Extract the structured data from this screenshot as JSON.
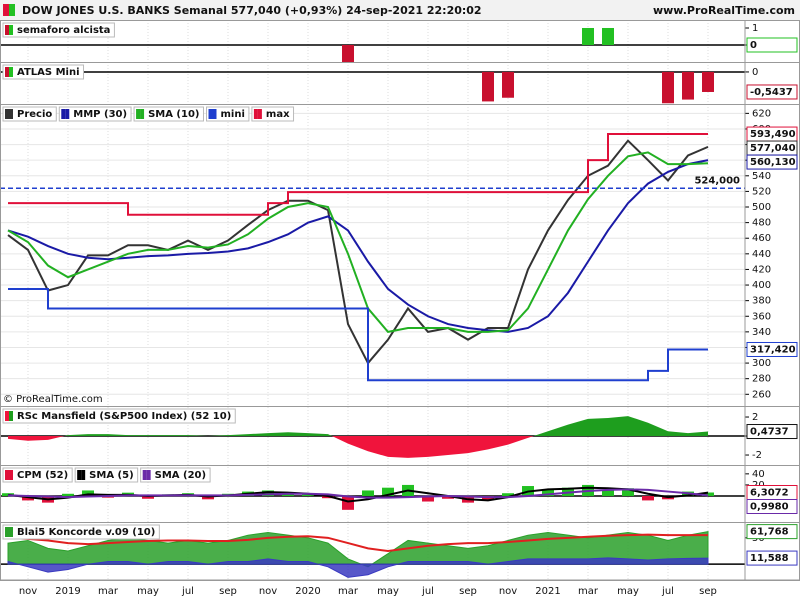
{
  "header": {
    "title": "DOW JONES U.S. BANKS Semanal 577,040 (+0,93%) 24-sep-2021 22:20:02",
    "site": "www.ProRealTime.com"
  },
  "chart_data": [
    {
      "type": "bar",
      "title": "semaforo alcista",
      "ylim": [
        -1,
        1.47
      ],
      "yticks": [
        1,
        0
      ],
      "up_color": "#22c022",
      "down_color": "#c8102e",
      "last_box": true,
      "series": [
        {
          "values": [
            0,
            0,
            0,
            0,
            0,
            0,
            0,
            0,
            0,
            0,
            0,
            0,
            0,
            0,
            0,
            0,
            0,
            -1,
            0,
            0,
            0,
            0,
            0,
            0,
            0,
            0,
            0,
            0,
            0,
            1,
            1,
            0,
            0,
            0,
            0,
            0
          ]
        }
      ]
    },
    {
      "type": "bar",
      "title": "ATLAS Mini",
      "ylim": [
        -0.87,
        0.27
      ],
      "yticks": [
        0
      ],
      "up_color": "#22c022",
      "down_color": "#c8102e",
      "series": [
        {
          "values": [
            0,
            0,
            0,
            0,
            0,
            0,
            0,
            0,
            0,
            0,
            0,
            0,
            0,
            0,
            0,
            0,
            0,
            0,
            0,
            0,
            0,
            0,
            0,
            0,
            -0.8,
            -0.7,
            0,
            0,
            0,
            0,
            0,
            0,
            0,
            -0.85,
            -0.75,
            -0.5437
          ],
          "last_label": "-0,5437",
          "color": "#c8102e"
        }
      ]
    },
    {
      "type": "line",
      "legend": true,
      "grid": true,
      "watermark": "© ProRealTime.com",
      "ylim": [
        245,
        632
      ],
      "yticks": [
        620,
        600,
        580,
        560,
        540,
        520,
        500,
        480,
        460,
        440,
        420,
        400,
        380,
        360,
        340,
        320,
        300,
        280,
        260
      ],
      "hline": {
        "value": 524,
        "label": "524,000",
        "color": "#1f3fcf"
      },
      "series": [
        {
          "name": "Precio",
          "color": "#333333",
          "values": [
            464,
            445,
            393,
            400,
            438,
            438,
            451,
            451,
            445,
            457,
            445,
            457,
            477,
            496,
            508,
            508,
            496,
            350,
            300,
            330,
            370,
            340,
            345,
            330,
            345,
            345,
            420,
            470,
            509,
            540,
            553,
            585,
            560,
            534,
            566,
            577.04
          ],
          "last_label": "577,040"
        },
        {
          "name": "MMP (30)",
          "color": "#1a1aa6",
          "values": [
            470,
            462,
            450,
            440,
            435,
            433,
            435,
            437,
            438,
            440,
            441,
            443,
            447,
            455,
            465,
            480,
            488,
            470,
            430,
            395,
            375,
            360,
            350,
            345,
            342,
            340,
            345,
            360,
            390,
            430,
            470,
            505,
            530,
            545,
            555,
            560.13
          ],
          "last_label": "560,130"
        },
        {
          "name": "SMA (10)",
          "color": "#22b022",
          "values": [
            470,
            455,
            425,
            410,
            420,
            430,
            440,
            445,
            445,
            450,
            448,
            452,
            465,
            485,
            500,
            505,
            500,
            440,
            370,
            340,
            345,
            345,
            345,
            340,
            340,
            342,
            370,
            420,
            470,
            510,
            540,
            565,
            570,
            555,
            555,
            556
          ]
        },
        {
          "name": "mini",
          "type": "step",
          "color": "#1f3fcf",
          "values": [
            395,
            395,
            370,
            370,
            370,
            370,
            370,
            370,
            370,
            370,
            370,
            370,
            370,
            370,
            370,
            370,
            370,
            370,
            278,
            278,
            278,
            278,
            278,
            278,
            278,
            278,
            278,
            278,
            278,
            278,
            278,
            278,
            290,
            317.42,
            317.42,
            317.42
          ],
          "last_label": "317,420"
        },
        {
          "name": "max",
          "type": "step",
          "color": "#e0103a",
          "values": [
            505,
            505,
            505,
            505,
            505,
            505,
            490,
            490,
            490,
            490,
            490,
            490,
            490,
            505,
            519,
            519,
            519,
            519,
            519,
            519,
            519,
            519,
            519,
            519,
            519,
            519,
            519,
            519,
            519,
            560,
            593.49,
            593.49,
            593.49,
            593.49,
            593.49,
            593.49
          ],
          "last_label": "593,490"
        }
      ]
    },
    {
      "type": "area",
      "title": "RSc Mansfield (S&P500 Index) (52 10)",
      "ylim": [
        -3.05,
        3.16
      ],
      "yticks": [
        2,
        0,
        -2
      ],
      "up_color": "#1e9e1e",
      "down_color": "#f0143c",
      "series": [
        {
          "values": [
            -0.3,
            -0.5,
            -0.4,
            0.1,
            0.2,
            0.2,
            0.1,
            0.1,
            0.1,
            0.1,
            0,
            0.1,
            0.2,
            0.3,
            0.4,
            0.3,
            0.2,
            -0.8,
            -1.6,
            -2.2,
            -2.3,
            -2.2,
            -2,
            -1.8,
            -1.4,
            -0.9,
            -0.2,
            0.5,
            1.2,
            1.8,
            1.9,
            2.1,
            1.4,
            0.5,
            0.3,
            0.4737
          ],
          "last_label": "0,4737",
          "color": "#111111"
        }
      ]
    },
    {
      "type": "bar",
      "legend": true,
      "ylim": [
        -47,
        56
      ],
      "yticks": [
        40,
        20
      ],
      "up_color": "#22c022",
      "down_color": "#e0103a",
      "series": [
        {
          "name": "CPM (52)",
          "values": [
            5,
            -8,
            -12,
            4,
            10,
            -3,
            6,
            -5,
            3,
            5,
            -6,
            4,
            8,
            10,
            6,
            3,
            -4,
            -25,
            10,
            15,
            20,
            -10,
            -5,
            -12,
            -8,
            5,
            18,
            12,
            15,
            20,
            10,
            14,
            -8,
            -6,
            8,
            6.3072
          ],
          "last_label": "6,3072",
          "color": "#e0103a"
        },
        {
          "name": "SMA (5)",
          "type": "line",
          "color": "#000000",
          "values": [
            2,
            -2,
            -6,
            -3,
            3,
            2,
            2,
            0,
            1,
            2,
            -1,
            1,
            4,
            7,
            6,
            4,
            0,
            -10,
            -6,
            2,
            10,
            5,
            0,
            -6,
            -8,
            -2,
            8,
            12,
            13,
            15,
            14,
            12,
            4,
            -2,
            1,
            6
          ]
        },
        {
          "name": "SMA (20)",
          "type": "line",
          "color": "#6a2aa8",
          "values": [
            1,
            0,
            -1,
            -2,
            -1,
            0,
            1,
            1,
            1,
            1,
            1,
            1,
            2,
            3,
            4,
            4,
            3,
            -1,
            -3,
            -3,
            -2,
            -1,
            0,
            -1,
            -2,
            -2,
            0,
            3,
            6,
            9,
            11,
            12,
            11,
            8,
            5,
            0.998
          ],
          "last_label": "0,9980"
        }
      ]
    },
    {
      "type": "area",
      "title": "Blai5 Koncorde v.09 (10)",
      "ylim": [
        -30,
        80
      ],
      "yticks": [
        50
      ],
      "categories": [
        null,
        "nov",
        null,
        "2019",
        null,
        "mar",
        null,
        "may",
        null,
        "jul",
        null,
        "sep",
        null,
        "nov",
        null,
        "2020",
        null,
        "mar",
        null,
        "may",
        null,
        "jul",
        null,
        "sep",
        null,
        "nov",
        null,
        "2021",
        null,
        "mar",
        null,
        "may",
        null,
        "jul",
        null,
        "sep"
      ],
      "series": [
        {
          "color": "#2aa02a",
          "values": [
            40,
            45,
            30,
            25,
            35,
            45,
            50,
            45,
            40,
            45,
            40,
            45,
            55,
            60,
            55,
            50,
            40,
            10,
            -5,
            20,
            45,
            40,
            35,
            30,
            35,
            45,
            55,
            60,
            55,
            50,
            55,
            60,
            55,
            45,
            55,
            61.768
          ],
          "last_label": "61,768"
        },
        {
          "color": "#3a3ac0",
          "values": [
            5,
            -5,
            -15,
            -10,
            0,
            5,
            5,
            0,
            5,
            5,
            0,
            5,
            5,
            10,
            5,
            5,
            -5,
            -25,
            -20,
            -5,
            5,
            5,
            5,
            5,
            0,
            5,
            10,
            10,
            10,
            10,
            12,
            10,
            8,
            10,
            11,
            11.588
          ],
          "last_label": "11,588"
        },
        {
          "type": "line",
          "color": "#e02020",
          "values": [
            50,
            48,
            45,
            40,
            38,
            40,
            42,
            44,
            45,
            45,
            44,
            44,
            46,
            50,
            52,
            53,
            50,
            40,
            30,
            25,
            30,
            35,
            38,
            40,
            40,
            42,
            45,
            48,
            50,
            52,
            54,
            55,
            56,
            55,
            55,
            55
          ]
        }
      ]
    }
  ]
}
